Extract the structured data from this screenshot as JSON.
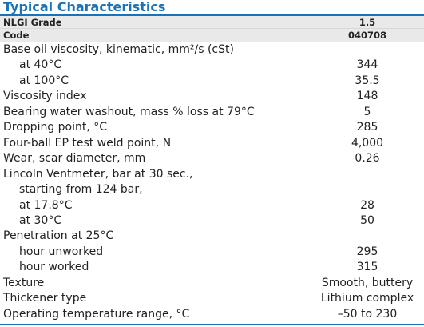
{
  "title": "Typical Characteristics",
  "table": {
    "header_rows": [
      [
        "NLGI Grade",
        "1.5"
      ],
      [
        "Code",
        "040708"
      ]
    ],
    "rows": [
      [
        "Base oil viscosity, kinematic, mm²/s (cSt)"
      ],
      [
        "at 40°C",
        "344"
      ],
      [
        "at 100°C",
        "35.5"
      ],
      [
        "Viscosity index",
        "148"
      ],
      [
        "Bearing water washout, mass % loss at 79°C",
        "5"
      ],
      [
        "Dropping point, °C",
        "285"
      ],
      [
        "Four-ball EP test weld point, N",
        "4,000"
      ],
      [
        "Wear, scar diameter, mm",
        "0.26"
      ],
      [
        "Lincoln Ventmeter, bar at 30 sec.,"
      ],
      [
        "starting from 124 bar,"
      ],
      [
        "at 17.8°C",
        "28"
      ],
      [
        "at 30°C",
        "50"
      ],
      [
        "Penetration at 25°C"
      ],
      [
        "hour unworked",
        "295"
      ],
      [
        "hour worked",
        "315"
      ],
      [
        "Texture",
        "Smooth, buttery"
      ],
      [
        "Thickener type",
        "Lithium complex"
      ],
      [
        "Operating temperature range, °C",
        "–50 to 230"
      ]
    ]
  }
}
